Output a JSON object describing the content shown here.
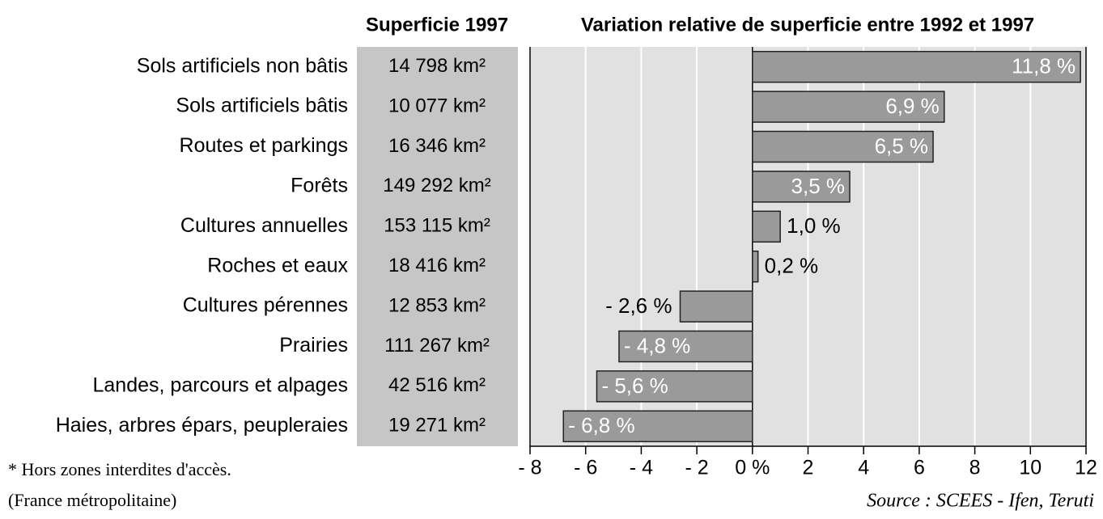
{
  "chart_data": {
    "type": "barh",
    "column_header": "Superficie 1997",
    "title": "Variation relative de superficie entre 1992 et 1997",
    "categories": [
      "Sols artificiels non bâtis",
      "Sols artificiels bâtis",
      "Routes et parkings",
      "Forêts",
      "Cultures annuelles",
      "Roches et eaux",
      "Cultures pérennes",
      "Prairies",
      "Landes, parcours et alpages",
      "Haies, arbres épars, peupleraies"
    ],
    "areas": [
      "14 798 km²",
      "10 077 km²",
      "16 346 km²",
      "149 292 km²",
      "153 115 km²",
      "18 416 km²",
      "12 853 km²",
      "111 267 km²",
      "42 516 km²",
      "19 271 km²"
    ],
    "values": [
      11.8,
      6.9,
      6.5,
      3.5,
      1.0,
      0.2,
      -2.6,
      -4.8,
      -5.6,
      -6.8
    ],
    "value_labels": [
      "11,8 %",
      "6,9 %",
      "6,5 %",
      "3,5 %",
      "1,0 %",
      "0,2 %",
      "- 2,6 %",
      "- 4,8 %",
      "- 5,6 %",
      "- 6,8 %"
    ],
    "color": "#9a9a9a",
    "xlim": [
      -8,
      12
    ],
    "xticks": [
      {
        "value": -8,
        "label": "- 8"
      },
      {
        "value": -6,
        "label": "- 6"
      },
      {
        "value": -4,
        "label": "- 4"
      },
      {
        "value": -2,
        "label": "- 2"
      },
      {
        "value": 0,
        "label": "0 %"
      },
      2,
      4,
      6,
      8,
      10,
      12
    ],
    "grid": true,
    "footnote": "* Hors zones interdites d'accès.",
    "note": "(France métropolitaine)",
    "source": "Source : SCEES - Ifen, Teruti"
  }
}
